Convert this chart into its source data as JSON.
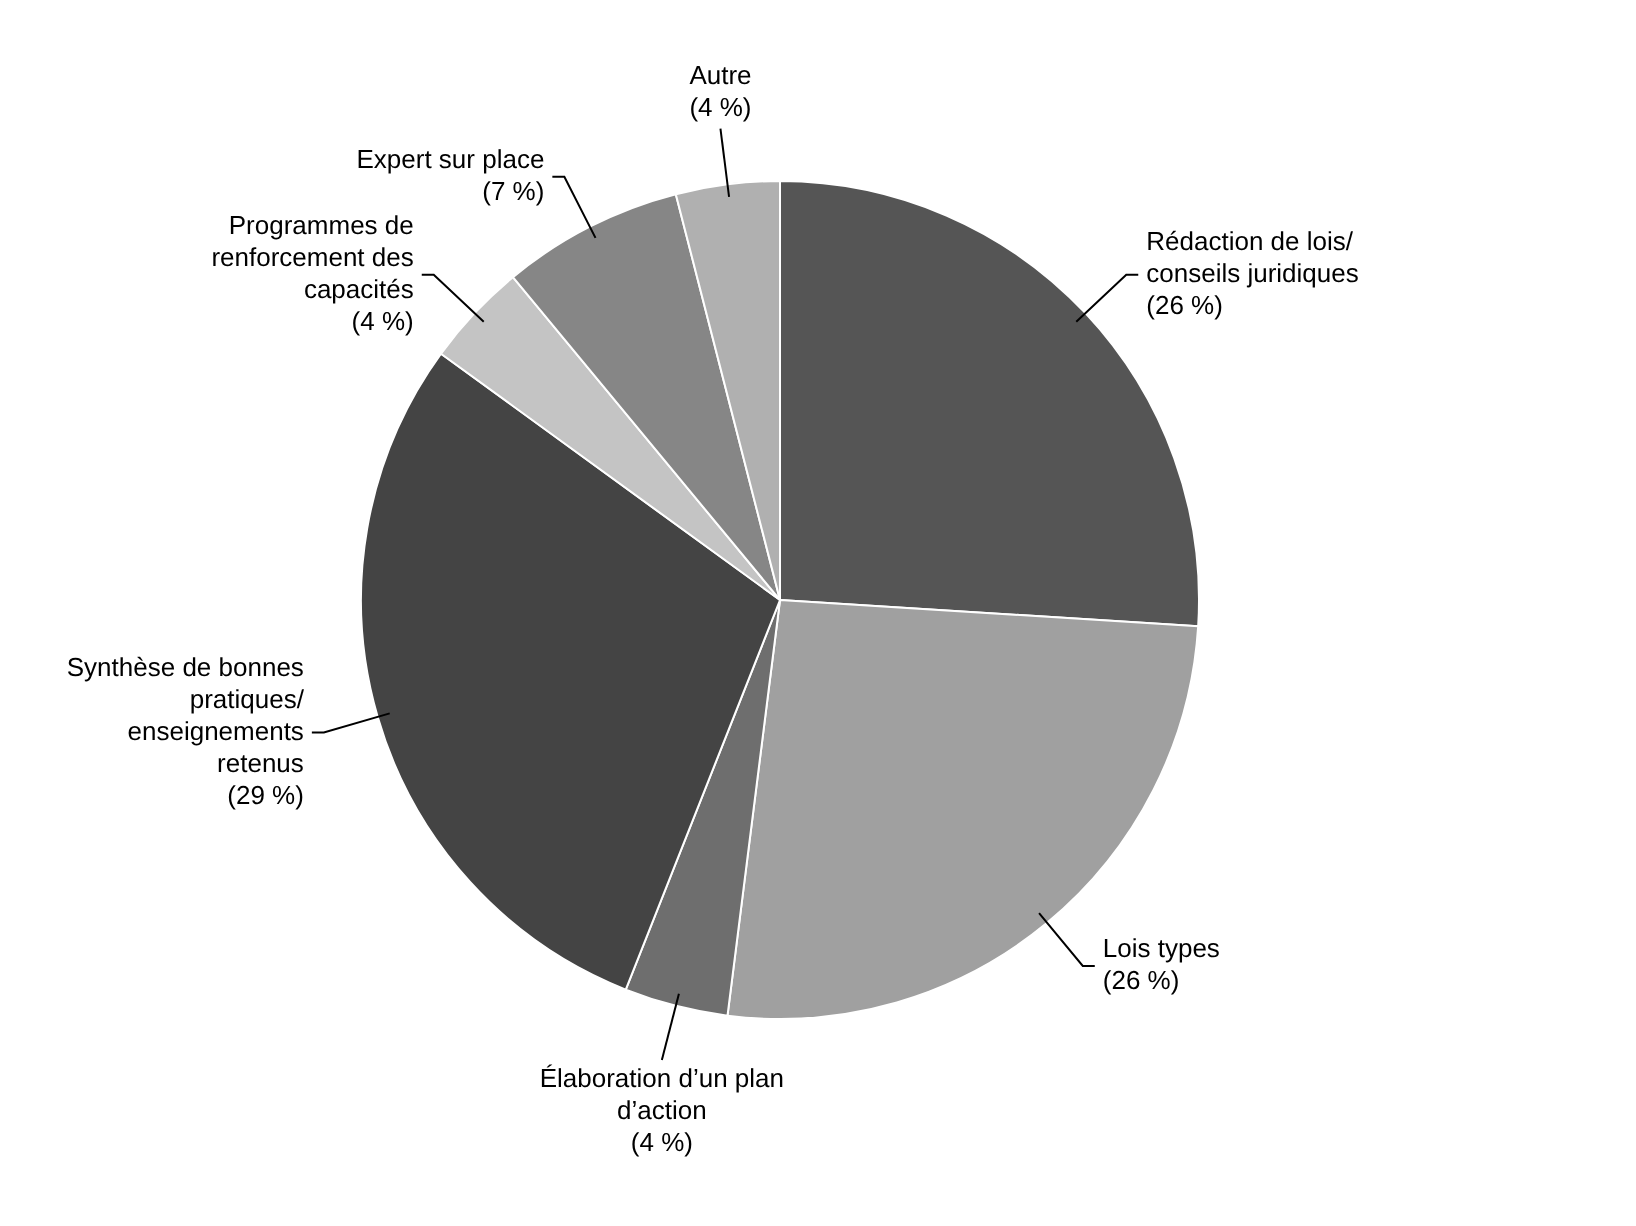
{
  "chart_data": {
    "type": "pie",
    "categories": [
      "Rédaction de lois/ conseils juridiques",
      "Lois types",
      "Élaboration d’un plan d’action",
      "Synthèse de bonnes pratiques/ enseignements retenus",
      "Programmes de renforcement des capacités",
      "Expert sur place",
      "Autre"
    ],
    "values": [
      26,
      26,
      4,
      29,
      4,
      7,
      4
    ],
    "value_labels": [
      "(26 %)",
      "(26 %)",
      "(4 %)",
      "(29 %)",
      "(4 %)",
      "(7 %)",
      "(4 %)"
    ],
    "colors": [
      "#555555",
      "#a0a0a0",
      "#6e6e6e",
      "#444444",
      "#c4c4c4",
      "#868686",
      "#b0b0b0"
    ],
    "legend": false
  }
}
